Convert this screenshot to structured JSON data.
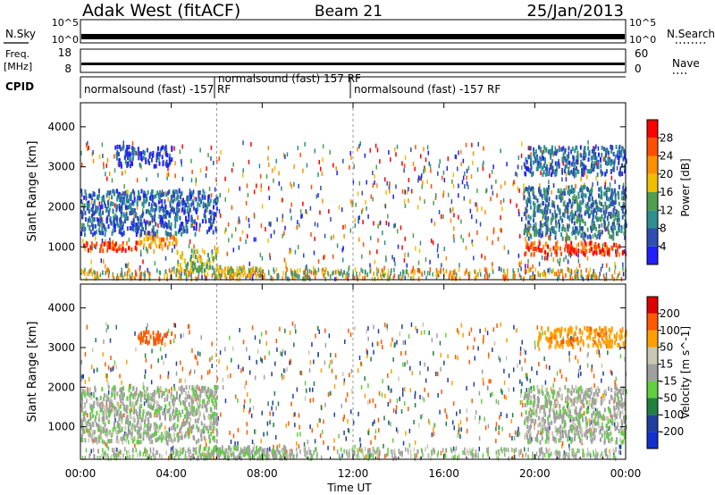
{
  "header": {
    "station": "Adak West (fitACF)",
    "beam": "Beam 21",
    "date": "25/Jan/2013"
  },
  "panels": {
    "nsky_label": "N.Sky",
    "freq_label": "Freq.",
    "freq_unit": "[MHz]",
    "cpid_label": "CPID",
    "nsearch_label": "N.Search",
    "nave_label": "Nave",
    "noise_ticks": [
      "10^5",
      "10^0"
    ],
    "freq_ticks": [
      "18",
      "8"
    ],
    "nave_ticks": [
      "60",
      "0"
    ]
  },
  "cpid": [
    {
      "label": "normalsound (fast) -157 RF",
      "start_hour": 0,
      "end_hour": 6
    },
    {
      "label": "normalsound (fast) 157 RF",
      "start_hour": 6,
      "end_hour": 12
    },
    {
      "label": "normalsound (fast) -157 RF",
      "start_hour": 12,
      "end_hour": 24
    }
  ],
  "colors": {
    "power": [
      "#1f1fff",
      "#2f4fb0",
      "#2f8f8f",
      "#4f9f4f",
      "#f0c000",
      "#ff9000",
      "#ff5000",
      "#ff0000"
    ],
    "velocity": [
      "#e00000",
      "#ff5a00",
      "#ffa000",
      "#c8c8b4",
      "#a0a0a0",
      "#60d040",
      "#208040",
      "#2040a0",
      "#1030d0"
    ]
  },
  "chart_data": [
    {
      "type": "line",
      "panel": "noise",
      "ylabel": "N.Sky",
      "y2label": "N.Search",
      "yticks": [
        "10^5",
        "10^0"
      ],
      "x": [
        0,
        4,
        8,
        12,
        16,
        20,
        24
      ],
      "series": [
        {
          "values": [
            1,
            1,
            1,
            1,
            1,
            1,
            1
          ]
        }
      ]
    },
    {
      "type": "line",
      "panel": "frequency",
      "ylabel": "Freq. [MHz]",
      "y2label": "Nave",
      "ylim": [
        8,
        18
      ],
      "yticks": [
        "18",
        "8"
      ],
      "y2ticks": [
        "60",
        "0"
      ],
      "x": [
        0,
        24
      ],
      "series": [
        {
          "values": [
            10.5,
            10.5
          ]
        }
      ]
    },
    {
      "type": "heatmap",
      "panel": "power",
      "title": "",
      "xlabel": "",
      "ylabel": "Slant Range [km]",
      "colorbar_label": "Power [dB]",
      "ylim": [
        180,
        4600
      ],
      "xlim": [
        0,
        24
      ],
      "yticks": [
        1000,
        2000,
        3000,
        4000
      ],
      "colorbar_ticks": [
        4,
        8,
        12,
        16,
        20,
        24,
        28
      ],
      "colorbar_range": [
        0,
        32
      ],
      "regions": [
        {
          "hours": [
            0,
            2.5
          ],
          "range_km": [
            900,
            1100
          ],
          "level": 28
        },
        {
          "hours": [
            2.5,
            4.2
          ],
          "range_km": [
            1000,
            1300
          ],
          "level": 22
        },
        {
          "hours": [
            4.2,
            6
          ],
          "range_km": [
            400,
            900
          ],
          "level": 16
        },
        {
          "hours": [
            6,
            8
          ],
          "range_km": [
            250,
            500
          ],
          "level": 18
        },
        {
          "hours": [
            0,
            6
          ],
          "range_km": [
            1300,
            2400
          ],
          "level": 8
        },
        {
          "hours": [
            1.5,
            4
          ],
          "range_km": [
            3000,
            3500
          ],
          "level": 6
        },
        {
          "hours": [
            19.5,
            24
          ],
          "range_km": [
            800,
            1100
          ],
          "level": 28
        },
        {
          "hours": [
            19.5,
            24
          ],
          "range_km": [
            1200,
            2500
          ],
          "level": 10
        },
        {
          "hours": [
            19.5,
            24
          ],
          "range_km": [
            2800,
            3500
          ],
          "level": 8
        }
      ]
    },
    {
      "type": "heatmap",
      "panel": "velocity",
      "title": "",
      "xlabel": "Time UT",
      "ylabel": "Slant Range [km]",
      "colorbar_label": "Velocity [m s^-1]",
      "ylim": [
        180,
        4600
      ],
      "xlim": [
        0,
        24
      ],
      "xticks": [
        "00:00",
        "04:00",
        "08:00",
        "12:00",
        "16:00",
        "20:00",
        "00:00"
      ],
      "xtick_hours": [
        0,
        4,
        8,
        12,
        16,
        20,
        24
      ],
      "yticks": [
        1000,
        2000,
        3000,
        4000
      ],
      "colorbar_ticks": [
        -200,
        -100,
        -50,
        -15,
        15,
        50,
        100,
        200
      ],
      "regions": [
        {
          "hours": [
            0,
            6
          ],
          "range_km": [
            600,
            2000
          ],
          "velocity": 0
        },
        {
          "hours": [
            5,
            9
          ],
          "range_km": [
            200,
            500
          ],
          "velocity": 20
        },
        {
          "hours": [
            2.5,
            4
          ],
          "range_km": [
            3100,
            3400
          ],
          "velocity": -150
        },
        {
          "hours": [
            19.5,
            24
          ],
          "range_km": [
            600,
            2000
          ],
          "velocity": 0
        },
        {
          "hours": [
            20,
            24
          ],
          "range_km": [
            3000,
            3500
          ],
          "velocity": -80
        }
      ]
    }
  ]
}
